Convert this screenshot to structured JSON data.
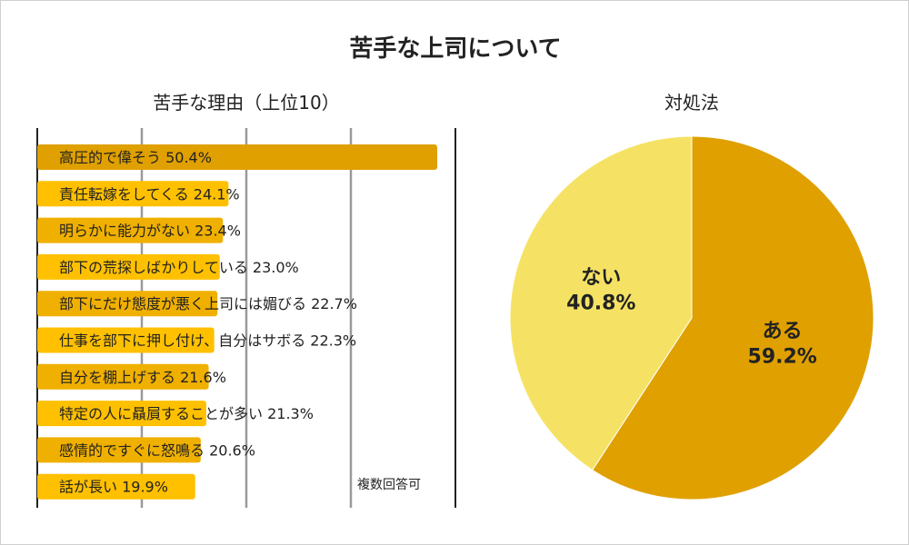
{
  "title": "苦手な上司について",
  "colors": {
    "bar_top": "#DFA000",
    "bar": "#FFC000",
    "pie_a": "#DFA000",
    "pie_b": "#F5E264",
    "grid": "#999999",
    "text": "#222222"
  },
  "chart_data": [
    {
      "type": "bar",
      "orientation": "horizontal",
      "title": "苦手な理由（上位10）",
      "note": "複数回答可",
      "xlim": [
        0,
        60
      ],
      "grid": true,
      "categories": [
        "高圧的で偉そう",
        "責任転嫁をしてくる",
        "明らかに能力がない",
        "部下の荒探しばかりしている",
        "部下にだけ態度が悪く上司には媚びる",
        "仕事を部下に押し付け、自分はサボる",
        "自分を棚上げする",
        "特定の人に贔屓することが多い",
        "感情的ですぐに怒鳴る",
        "話が長い"
      ],
      "values": [
        50.4,
        24.1,
        23.4,
        23.0,
        22.7,
        22.3,
        21.6,
        21.3,
        20.6,
        19.9
      ],
      "value_labels": [
        "50.4%",
        "24.1%",
        "23.4%",
        "23.0%",
        "22.7%",
        "22.3%",
        "21.6%",
        "21.3%",
        "20.6%",
        "19.9%"
      ]
    },
    {
      "type": "pie",
      "title": "対処法",
      "categories": [
        "ある",
        "ない"
      ],
      "values": [
        59.2,
        40.8
      ],
      "value_labels": [
        "59.2%",
        "40.8%"
      ]
    }
  ]
}
